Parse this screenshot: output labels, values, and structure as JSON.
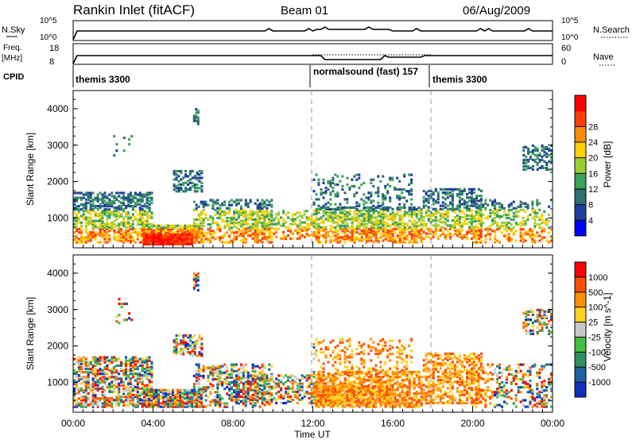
{
  "header": {
    "station": "Rankin Inlet (fitACF)",
    "beam": "Beam 01",
    "date": "06/Aug/2009"
  },
  "sidebar_labels": {
    "nsky": "N.Sky",
    "freq": "Freq.",
    "freq_unit": "[MHz]",
    "cpid": "CPID",
    "nsearch": "N.Search",
    "nave": "Nave",
    "nsky_top": "10^5",
    "nsky_bottom": "10^0",
    "nsearch_top": "10^5",
    "nsearch_bottom": "10^0",
    "freq_top": "18",
    "freq_bottom": "8",
    "nave_top": "60",
    "nave_bottom": "0"
  },
  "cpid_segments": [
    {
      "label": "themis 3300",
      "start_hour": 0,
      "end_hour": 12
    },
    {
      "label": "normalsound (fast) 157",
      "start_hour": 12,
      "end_hour": 18
    },
    {
      "label": "themis 3300",
      "start_hour": 18,
      "end_hour": 24
    }
  ],
  "colors": {
    "power": [
      "#0000ff",
      "#1f3f9f",
      "#2e6f6f",
      "#3aa05a",
      "#9ccc30",
      "#ffd000",
      "#ff8c00",
      "#ff4000",
      "#ff0000"
    ],
    "velocity": [
      "#1030c0",
      "#2060a0",
      "#2f8f5f",
      "#40c040",
      "#c8c8c8",
      "#ffd020",
      "#ff9000",
      "#ff5000",
      "#ff0000"
    ]
  },
  "chart_data": [
    {
      "type": "heatmap",
      "name": "power",
      "ylabel": "Slant Range [km]",
      "xlabel": "",
      "ylim": [
        180,
        4500
      ],
      "y_ticks": [
        "1000",
        "2000",
        "3000",
        "4000"
      ],
      "x_ticks": [
        "00:00",
        "04:00",
        "08:00",
        "12:00",
        "16:00",
        "20:00",
        "00:00"
      ],
      "x_range_hours": [
        0,
        24
      ],
      "colorbar_label": "Power [dB]",
      "colorbar_ticks": [
        "4",
        "8",
        "12",
        "16",
        "20",
        "24",
        "28"
      ],
      "value_range": [
        0,
        30
      ]
    },
    {
      "type": "heatmap",
      "name": "velocity",
      "ylabel": "Slant Range [km]",
      "xlabel": "Time UT",
      "ylim": [
        180,
        4500
      ],
      "y_ticks": [
        "1000",
        "2000",
        "3000",
        "4000"
      ],
      "x_ticks": [
        "00:00",
        "04:00",
        "08:00",
        "12:00",
        "16:00",
        "20:00",
        "00:00"
      ],
      "x_range_hours": [
        0,
        24
      ],
      "colorbar_label": "Velocity [m s^-1]",
      "colorbar_ticks": [
        "1000",
        "500",
        "100",
        "25",
        "-25",
        "-100",
        "-500",
        "-1000"
      ]
    }
  ]
}
